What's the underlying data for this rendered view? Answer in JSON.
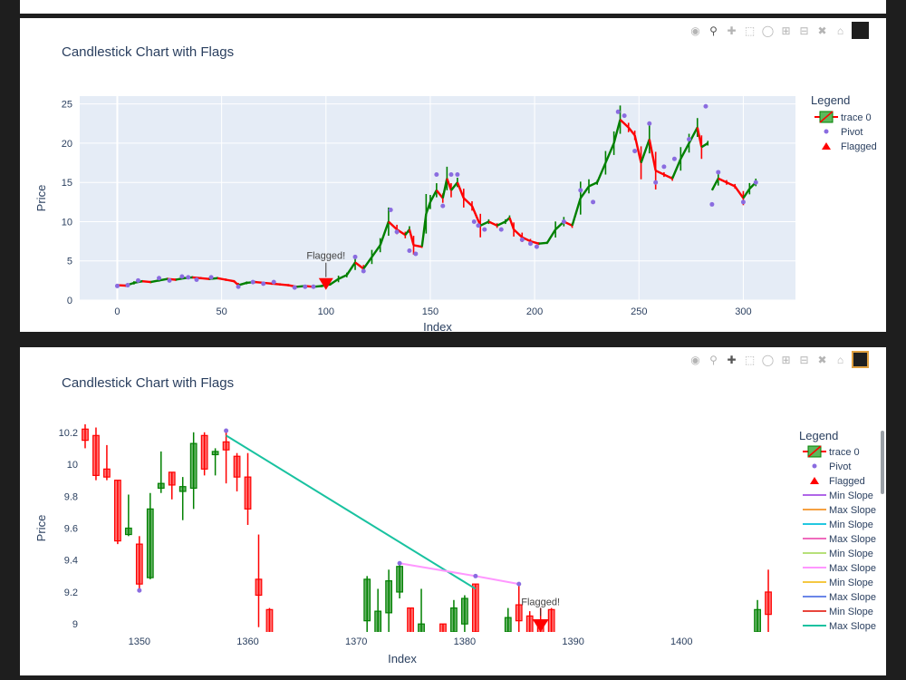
{
  "colors": {
    "increasing": "#008000",
    "decreasing": "#ff0000",
    "pivot": "#8a6ce0",
    "flag": "#ff0000",
    "plot_bg": "#e5ecf6",
    "text": "#2a3f5f"
  },
  "modebar_icons": [
    "camera-icon",
    "zoom-icon",
    "pan-icon",
    "box-select-icon",
    "lasso-icon",
    "zoom-in-icon",
    "zoom-out-icon",
    "autoscale-icon",
    "home-icon",
    "plotly-logo-icon"
  ],
  "chart_top": {
    "title": "Candlestick Chart with Flags",
    "xlabel": "Index",
    "ylabel": "Price",
    "legend_title": "Legend",
    "legend_items": [
      "trace 0",
      "Pivot",
      "Flagged"
    ],
    "annotation": "Flagged!"
  },
  "chart_bottom": {
    "title": "Candlestick Chart with Flags",
    "xlabel": "Index",
    "ylabel": "Price",
    "legend_title": "Legend",
    "legend_items": [
      "trace 0",
      "Pivot",
      "Flagged",
      "Min Slope",
      "Max Slope",
      "Min Slope",
      "Max Slope",
      "Min Slope",
      "Max Slope",
      "Min Slope",
      "Max Slope",
      "Min Slope",
      "Max Slope"
    ],
    "annotation": "Flagged!"
  },
  "chart_data": [
    {
      "type": "candlestick",
      "title": "Candlestick Chart with Flags",
      "xlabel": "Index",
      "ylabel": "Price",
      "xlim": [
        -18,
        325
      ],
      "ylim": [
        0,
        26
      ],
      "xticks": [
        0,
        50,
        100,
        150,
        200,
        250,
        300
      ],
      "yticks": [
        0,
        5,
        10,
        15,
        20,
        25
      ],
      "close_path": [
        [
          0,
          1.9
        ],
        [
          4,
          1.85
        ],
        [
          8,
          2.2
        ],
        [
          12,
          2.4
        ],
        [
          16,
          2.3
        ],
        [
          20,
          2.5
        ],
        [
          24,
          2.7
        ],
        [
          28,
          2.6
        ],
        [
          32,
          2.8
        ],
        [
          36,
          2.9
        ],
        [
          40,
          2.8
        ],
        [
          44,
          2.7
        ],
        [
          48,
          2.8
        ],
        [
          52,
          2.6
        ],
        [
          56,
          2.4
        ],
        [
          58,
          1.9
        ],
        [
          62,
          2.2
        ],
        [
          66,
          2.3
        ],
        [
          70,
          2.2
        ],
        [
          74,
          2.1
        ],
        [
          78,
          2.0
        ],
        [
          82,
          1.9
        ],
        [
          86,
          1.7
        ],
        [
          90,
          1.8
        ],
        [
          94,
          1.7
        ],
        [
          98,
          1.8
        ],
        [
          102,
          2.0
        ],
        [
          106,
          2.7
        ],
        [
          110,
          3.2
        ],
        [
          114,
          4.8
        ],
        [
          118,
          4.0
        ],
        [
          122,
          5.5
        ],
        [
          126,
          7.0
        ],
        [
          130,
          10.0
        ],
        [
          134,
          9.0
        ],
        [
          138,
          8.3
        ],
        [
          140,
          9.0
        ],
        [
          142,
          7.0
        ],
        [
          146,
          6.8
        ],
        [
          148,
          11.0
        ],
        [
          150,
          12.5
        ],
        [
          153,
          14.0
        ],
        [
          156,
          13.0
        ],
        [
          158,
          15.5
        ],
        [
          160,
          14.0
        ],
        [
          163,
          15.0
        ],
        [
          166,
          13.0
        ],
        [
          170,
          12.0
        ],
        [
          174,
          9.5
        ],
        [
          178,
          10.0
        ],
        [
          182,
          9.5
        ],
        [
          186,
          10.0
        ],
        [
          188,
          10.5
        ],
        [
          190,
          9.0
        ],
        [
          194,
          8.0
        ],
        [
          198,
          7.5
        ],
        [
          202,
          7.2
        ],
        [
          206,
          7.3
        ],
        [
          210,
          9.0
        ],
        [
          214,
          10.0
        ],
        [
          218,
          9.5
        ],
        [
          222,
          13.0
        ],
        [
          226,
          14.5
        ],
        [
          230,
          15.0
        ],
        [
          234,
          17.5
        ],
        [
          238,
          20.0
        ],
        [
          241,
          23.0
        ],
        [
          245,
          22.0
        ],
        [
          248,
          21.0
        ],
        [
          251,
          17.5
        ],
        [
          255,
          20.5
        ],
        [
          258,
          16.5
        ],
        [
          262,
          16.0
        ],
        [
          266,
          15.5
        ],
        [
          270,
          18.0
        ],
        [
          274,
          20.0
        ],
        [
          278,
          22.0
        ],
        [
          280,
          19.5
        ],
        [
          283,
          20.0
        ],
        [
          284,
          null
        ],
        [
          285,
          14.0
        ],
        [
          288,
          15.5
        ],
        [
          292,
          15.0
        ],
        [
          296,
          14.5
        ],
        [
          300,
          13.0
        ],
        [
          303,
          14.2
        ],
        [
          306,
          15.0
        ]
      ],
      "pivots": [
        [
          0,
          1.8
        ],
        [
          5,
          1.9
        ],
        [
          10,
          2.5
        ],
        [
          20,
          2.8
        ],
        [
          25,
          2.5
        ],
        [
          31,
          3.0
        ],
        [
          34,
          2.9
        ],
        [
          38,
          2.6
        ],
        [
          45,
          2.9
        ],
        [
          58,
          1.7
        ],
        [
          65,
          2.3
        ],
        [
          70,
          2.1
        ],
        [
          75,
          2.3
        ],
        [
          85,
          1.6
        ],
        [
          90,
          1.7
        ],
        [
          94,
          1.7
        ],
        [
          114,
          5.5
        ],
        [
          118,
          3.7
        ],
        [
          131,
          11.5
        ],
        [
          134,
          8.7
        ],
        [
          140,
          6.3
        ],
        [
          143,
          5.9
        ],
        [
          153,
          16.0
        ],
        [
          156,
          12.0
        ],
        [
          160,
          16.0
        ],
        [
          163,
          16.0
        ],
        [
          171,
          10.0
        ],
        [
          173,
          9.5
        ],
        [
          176,
          9.0
        ],
        [
          184,
          9.0
        ],
        [
          194,
          7.7
        ],
        [
          198,
          7.2
        ],
        [
          201,
          6.8
        ],
        [
          214,
          10.0
        ],
        [
          222,
          14.0
        ],
        [
          228,
          12.5
        ],
        [
          240,
          24.0
        ],
        [
          243,
          23.5
        ],
        [
          248,
          19.0
        ],
        [
          255,
          22.5
        ],
        [
          258,
          15.0
        ],
        [
          262,
          17.0
        ],
        [
          267,
          18.0
        ],
        [
          274,
          20.5
        ],
        [
          282,
          24.7
        ],
        [
          285,
          12.2
        ],
        [
          288,
          16.3
        ],
        [
          300,
          12.5
        ],
        [
          306,
          15.0
        ]
      ],
      "flagged": [
        [
          100,
          2.0
        ]
      ],
      "annotation": {
        "text": "Flagged!",
        "x": 100,
        "y": 2.0
      }
    },
    {
      "type": "candlestick",
      "title": "Candlestick Chart with Flags",
      "xlabel": "Index",
      "ylabel": "Price",
      "xlim": [
        1344.5,
        1409
      ],
      "ylim": [
        8.95,
        10.25
      ],
      "xticks": [
        1350,
        1360,
        1370,
        1380,
        1390,
        1400
      ],
      "yticks": [
        9,
        9.2,
        9.4,
        9.6,
        9.8,
        10,
        10.2
      ],
      "candles": [
        {
          "x": 1345,
          "o": 10.22,
          "h": 10.25,
          "l": 10.1,
          "c": 10.15
        },
        {
          "x": 1346,
          "o": 10.18,
          "h": 10.23,
          "l": 9.9,
          "c": 9.93
        },
        {
          "x": 1347,
          "o": 9.97,
          "h": 10.12,
          "l": 9.9,
          "c": 9.92
        },
        {
          "x": 1348,
          "o": 9.9,
          "h": 9.9,
          "l": 9.5,
          "c": 9.52
        },
        {
          "x": 1349,
          "o": 9.56,
          "h": 9.81,
          "l": 9.55,
          "c": 9.6
        },
        {
          "x": 1350,
          "o": 9.5,
          "h": 9.55,
          "l": 9.21,
          "c": 9.25
        },
        {
          "x": 1351,
          "o": 9.29,
          "h": 9.82,
          "l": 9.28,
          "c": 9.72
        },
        {
          "x": 1352,
          "o": 9.85,
          "h": 10.08,
          "l": 9.82,
          "c": 9.88
        },
        {
          "x": 1353,
          "o": 9.95,
          "h": 9.95,
          "l": 9.78,
          "c": 9.87
        },
        {
          "x": 1354,
          "o": 9.83,
          "h": 9.92,
          "l": 9.65,
          "c": 9.86
        },
        {
          "x": 1355,
          "o": 9.85,
          "h": 10.2,
          "l": 9.72,
          "c": 10.13
        },
        {
          "x": 1356,
          "o": 10.18,
          "h": 10.2,
          "l": 9.93,
          "c": 9.97
        },
        {
          "x": 1357,
          "o": 10.06,
          "h": 10.1,
          "l": 9.93,
          "c": 10.08
        },
        {
          "x": 1358,
          "o": 10.14,
          "h": 10.21,
          "l": 9.88,
          "c": 10.09
        },
        {
          "x": 1359,
          "o": 10.05,
          "h": 10.07,
          "l": 9.83,
          "c": 9.92
        },
        {
          "x": 1360,
          "o": 9.92,
          "h": 10.07,
          "l": 9.62,
          "c": 9.72
        },
        {
          "x": 1361,
          "o": 9.28,
          "h": 9.56,
          "l": 8.98,
          "c": 9.18
        },
        {
          "x": 1362,
          "o": 9.09,
          "h": 9.1,
          "l": 8.9,
          "c": 8.92
        },
        {
          "x": 1371,
          "o": 9.02,
          "h": 9.3,
          "l": 8.9,
          "c": 9.28
        },
        {
          "x": 1372,
          "o": 8.9,
          "h": 9.22,
          "l": 8.9,
          "c": 9.08
        },
        {
          "x": 1373,
          "o": 9.07,
          "h": 9.34,
          "l": 8.9,
          "c": 9.27
        },
        {
          "x": 1374,
          "o": 9.2,
          "h": 9.38,
          "l": 9.16,
          "c": 9.36
        },
        {
          "x": 1375,
          "o": 9.1,
          "h": 9.1,
          "l": 8.9,
          "c": 8.92
        },
        {
          "x": 1376,
          "o": 8.9,
          "h": 9.22,
          "l": 8.9,
          "c": 9.0
        },
        {
          "x": 1378,
          "o": 9.0,
          "h": 9.0,
          "l": 8.9,
          "c": 8.92
        },
        {
          "x": 1379,
          "o": 8.95,
          "h": 9.15,
          "l": 8.9,
          "c": 9.1
        },
        {
          "x": 1380,
          "o": 9.0,
          "h": 9.18,
          "l": 8.9,
          "c": 9.16
        },
        {
          "x": 1381,
          "o": 9.25,
          "h": 9.25,
          "l": 8.9,
          "c": 8.95
        },
        {
          "x": 1384,
          "o": 8.95,
          "h": 9.1,
          "l": 8.9,
          "c": 9.04
        },
        {
          "x": 1385,
          "o": 9.12,
          "h": 9.25,
          "l": 8.95,
          "c": 9.02
        },
        {
          "x": 1386,
          "o": 9.05,
          "h": 9.08,
          "l": 8.9,
          "c": 8.92
        },
        {
          "x": 1387,
          "o": 9.02,
          "h": 9.1,
          "l": 8.9,
          "c": 8.92
        },
        {
          "x": 1388,
          "o": 9.09,
          "h": 9.1,
          "l": 8.9,
          "c": 8.92
        },
        {
          "x": 1407,
          "o": 8.95,
          "h": 9.15,
          "l": 8.9,
          "c": 9.09
        },
        {
          "x": 1408,
          "o": 9.2,
          "h": 9.34,
          "l": 8.9,
          "c": 9.06
        }
      ],
      "pivots": [
        [
          1350,
          9.21
        ],
        [
          1358,
          10.21
        ],
        [
          1374,
          9.38
        ],
        [
          1381,
          9.3
        ],
        [
          1385,
          9.25
        ]
      ],
      "lines": [
        {
          "name": "Max Slope",
          "color": "#19c2a0",
          "points": [
            [
              1358,
              10.18
            ],
            [
              1381,
              9.22
            ]
          ]
        },
        {
          "name": "Max Slope",
          "color": "#ff97ff",
          "points": [
            [
              1374,
              9.38
            ],
            [
              1381,
              9.3
            ],
            [
              1385,
              9.25
            ]
          ]
        }
      ],
      "flagged": [
        [
          1387,
          8.99
        ]
      ],
      "annotation": {
        "text": "Flagged!",
        "x": 1387,
        "y": 9.05
      }
    }
  ]
}
